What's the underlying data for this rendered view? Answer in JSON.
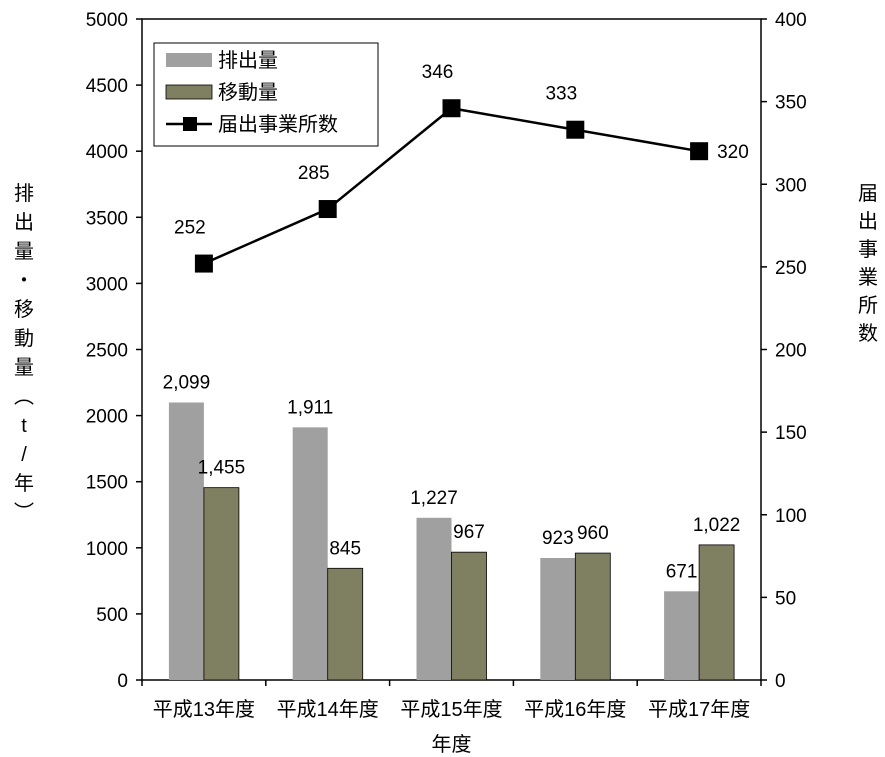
{
  "chart_data": {
    "type": "bar",
    "xlabel": "年度",
    "ylabel": "排出量・移動量（t/年）",
    "y2label": "届出事業所数",
    "categories": [
      "平成13年度",
      "平成14年度",
      "平成15年度",
      "平成16年度",
      "平成17年度"
    ],
    "ylim": [
      0,
      5000
    ],
    "y_ticks": [
      "0",
      "500",
      "1000",
      "1500",
      "2000",
      "2500",
      "3000",
      "3500",
      "4000",
      "4500",
      "5000"
    ],
    "y2lim": [
      0,
      400
    ],
    "y2_ticks": [
      "0",
      "50",
      "100",
      "150",
      "200",
      "250",
      "300",
      "350",
      "400"
    ],
    "grid": false,
    "legend_position": "top-left",
    "series": [
      {
        "name": "排出量",
        "type": "bar",
        "axis": "left",
        "color": "#a0a0a0",
        "values": [
          2099,
          1911,
          1227,
          923,
          671
        ],
        "labels": [
          "2,099",
          "1,911",
          "1,227",
          "923",
          "671"
        ]
      },
      {
        "name": "移動量",
        "type": "bar",
        "axis": "left",
        "color": "#7f7f62",
        "values": [
          1455,
          845,
          967,
          960,
          1022
        ],
        "labels": [
          "1,455",
          "845",
          "967",
          "960",
          "1,022"
        ]
      },
      {
        "name": "届出事業所数",
        "type": "line",
        "axis": "right",
        "color": "#000000",
        "marker": "square",
        "values": [
          252,
          285,
          346,
          333,
          320
        ],
        "labels": [
          "252",
          "285",
          "346",
          "333",
          "320"
        ]
      }
    ]
  }
}
